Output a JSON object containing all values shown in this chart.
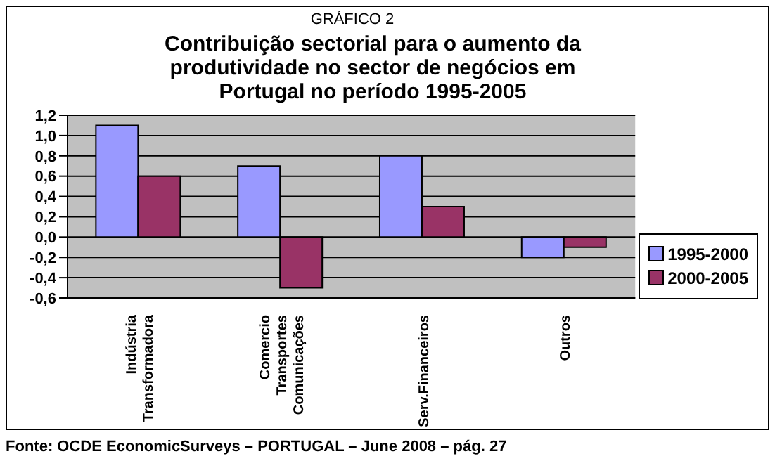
{
  "chart_data": {
    "type": "bar",
    "subtitle": "GRÁFICO 2",
    "title": "Contribuição sectorial para o aumento da produtividade no sector de negócios em Portugal no período 1995-2005",
    "categories": [
      "Indústria Transformadora",
      "Comercio Transportes Comunicações",
      "Serv.Financeiros",
      "Outros"
    ],
    "series": [
      {
        "name": "1995-2000",
        "color": "#9999ff",
        "values": [
          1.1,
          0.7,
          0.8,
          -0.2
        ]
      },
      {
        "name": "2000-2005",
        "color": "#993366",
        "values": [
          0.6,
          -0.5,
          0.3,
          -0.1
        ]
      }
    ],
    "ylim": [
      -0.6,
      1.2
    ],
    "yticks": [
      {
        "value": -0.6,
        "label": "-0,6"
      },
      {
        "value": -0.4,
        "label": "-0,4"
      },
      {
        "value": -0.2,
        "label": "-0,2"
      },
      {
        "value": 0,
        "label": "0,0"
      },
      {
        "value": 0.2,
        "label": "0,2"
      },
      {
        "value": 0.4,
        "label": "0,4"
      },
      {
        "value": 0.6,
        "label": "0,6"
      },
      {
        "value": 0.8,
        "label": "0,8"
      },
      {
        "value": 1,
        "label": "1,0"
      },
      {
        "value": 1.2,
        "label": "1,2"
      }
    ],
    "grid": "y",
    "legend": "right",
    "annotations": [
      "Fonte: OCDE EconomicSurveys – PORTUGAL – June 2008 – pág. 27"
    ]
  }
}
